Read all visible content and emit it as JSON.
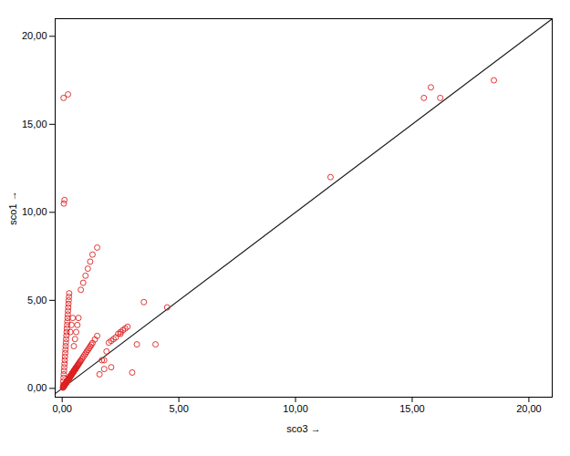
{
  "chart_data": {
    "type": "scatter",
    "xlabel": "sco3",
    "ylabel": "sco1",
    "xlim": [
      -0.3,
      21.0
    ],
    "ylim": [
      -0.5,
      21.0
    ],
    "xticks": [
      {
        "value": 0.0,
        "label": "0,00"
      },
      {
        "value": 5.0,
        "label": "5,00"
      },
      {
        "value": 10.0,
        "label": "10,00"
      },
      {
        "value": 15.0,
        "label": "15,00"
      },
      {
        "value": 20.0,
        "label": "20,00"
      }
    ],
    "yticks": [
      {
        "value": 0.0,
        "label": "0,00"
      },
      {
        "value": 5.0,
        "label": "5,00"
      },
      {
        "value": 10.0,
        "label": "10,00"
      },
      {
        "value": 15.0,
        "label": "15,00"
      },
      {
        "value": 20.0,
        "label": "20,00"
      }
    ],
    "grid": false,
    "series": [
      {
        "type": "line",
        "color": "#1a1a1a",
        "x": [
          -0.3,
          21.0
        ],
        "values": [
          -0.3,
          21.0
        ]
      },
      {
        "type": "scatter",
        "color": "#dd2020",
        "marker": "circle",
        "x": [
          0.03,
          0.04,
          0.05,
          0.06,
          0.07,
          0.08,
          0.09,
          0.1,
          0.11,
          0.12,
          0.13,
          0.14,
          0.15,
          0.16,
          0.17,
          0.18,
          0.19,
          0.2,
          0.21,
          0.22,
          0.23,
          0.24,
          0.25,
          0.26,
          0.27,
          0.28,
          0.29,
          0.3,
          0.31,
          0.32,
          0.33,
          0.34,
          0.35,
          0.36,
          0.37,
          0.38,
          0.39,
          0.4,
          0.41,
          0.42,
          0.43,
          0.44,
          0.45,
          0.46,
          0.47,
          0.48,
          0.49,
          0.5,
          0.51,
          0.52,
          0.53,
          0.54,
          0.55,
          0.56,
          0.57,
          0.58,
          0.59,
          0.6,
          0.62,
          0.64,
          0.66,
          0.68,
          0.7,
          0.72,
          0.75,
          0.78,
          0.8,
          0.85,
          0.9,
          0.95,
          1.0,
          1.05,
          1.1,
          1.15,
          1.2,
          1.25,
          1.3,
          1.4,
          1.5,
          1.6,
          1.7,
          1.8,
          1.9,
          2.0,
          2.1,
          2.2,
          2.3,
          2.4,
          2.5,
          2.6,
          2.7,
          2.8,
          3.0,
          3.2,
          3.5,
          4.0,
          4.5,
          0.04,
          0.05,
          0.06,
          0.07,
          0.08,
          0.09,
          0.1,
          0.11,
          0.12,
          0.13,
          0.14,
          0.15,
          0.16,
          0.17,
          0.18,
          0.19,
          0.2,
          0.21,
          0.22,
          0.23,
          0.24,
          0.25,
          0.26,
          0.27,
          0.28,
          0.29,
          0.3,
          0.35,
          0.4,
          0.45,
          0.5,
          0.55,
          0.6,
          0.65,
          0.7,
          0.8,
          0.9,
          1.0,
          1.1,
          1.2,
          1.3,
          1.5,
          1.8,
          2.1,
          2.5,
          11.5,
          15.5,
          15.8,
          16.2,
          18.5,
          0.07,
          0.1,
          0.06,
          0.25
        ],
        "values": [
          0.04,
          0.06,
          0.08,
          0.1,
          0.12,
          0.14,
          0.16,
          0.18,
          0.2,
          0.22,
          0.24,
          0.26,
          0.28,
          0.3,
          0.32,
          0.34,
          0.36,
          0.38,
          0.4,
          0.42,
          0.44,
          0.46,
          0.48,
          0.5,
          0.52,
          0.54,
          0.56,
          0.58,
          0.6,
          0.62,
          0.64,
          0.66,
          0.68,
          0.7,
          0.72,
          0.74,
          0.76,
          0.78,
          0.8,
          0.82,
          0.84,
          0.86,
          0.88,
          0.9,
          0.92,
          0.94,
          0.96,
          0.98,
          1.0,
          1.02,
          1.04,
          1.06,
          1.08,
          1.1,
          1.12,
          1.14,
          1.16,
          1.18,
          1.22,
          1.26,
          1.3,
          1.34,
          1.38,
          1.42,
          1.48,
          1.54,
          1.58,
          1.68,
          1.78,
          1.88,
          1.98,
          2.08,
          2.18,
          2.28,
          2.38,
          2.48,
          2.58,
          2.78,
          2.98,
          0.8,
          1.6,
          1.6,
          2.1,
          2.6,
          2.7,
          2.8,
          2.9,
          3.1,
          3.2,
          3.3,
          3.4,
          3.5,
          0.9,
          2.5,
          4.9,
          2.5,
          4.6,
          0.2,
          0.4,
          0.6,
          0.8,
          1.0,
          1.2,
          1.4,
          1.6,
          1.8,
          2.0,
          2.2,
          2.4,
          2.6,
          2.8,
          3.0,
          3.2,
          3.4,
          3.6,
          3.8,
          4.0,
          4.2,
          4.4,
          4.6,
          4.8,
          5.0,
          5.2,
          5.4,
          3.2,
          3.6,
          4.0,
          2.4,
          2.8,
          3.2,
          3.6,
          4.0,
          5.6,
          6.0,
          6.4,
          6.8,
          7.2,
          7.6,
          8.0,
          1.1,
          1.2,
          3.1,
          12.0,
          16.5,
          17.1,
          16.5,
          17.5,
          10.5,
          10.7,
          16.5,
          16.7
        ]
      }
    ]
  }
}
